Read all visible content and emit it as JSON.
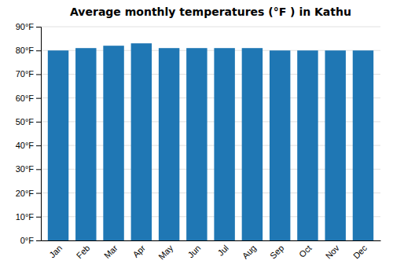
{
  "chart_data": {
    "type": "bar",
    "title": "Average monthly temperatures (°F ) in Kathu",
    "categories": [
      "Jan",
      "Feb",
      "Mar",
      "Apr",
      "May",
      "Jun",
      "Jul",
      "Aug",
      "Sep",
      "Oct",
      "Nov",
      "Dec"
    ],
    "values": [
      80,
      81,
      82,
      83,
      81,
      81,
      81,
      81,
      80,
      80,
      80,
      80
    ],
    "ylim": [
      0,
      90
    ],
    "yticks": [
      {
        "value": 0,
        "label": "0°F"
      },
      {
        "value": 10,
        "label": "10°F"
      },
      {
        "value": 20,
        "label": "20°F"
      },
      {
        "value": 30,
        "label": "30°F"
      },
      {
        "value": 40,
        "label": "40°F"
      },
      {
        "value": 50,
        "label": "50°F"
      },
      {
        "value": 60,
        "label": "60°F"
      },
      {
        "value": 70,
        "label": "70°F"
      },
      {
        "value": 80,
        "label": "80°F"
      },
      {
        "value": 90,
        "label": "90°F"
      }
    ],
    "grid": true
  }
}
